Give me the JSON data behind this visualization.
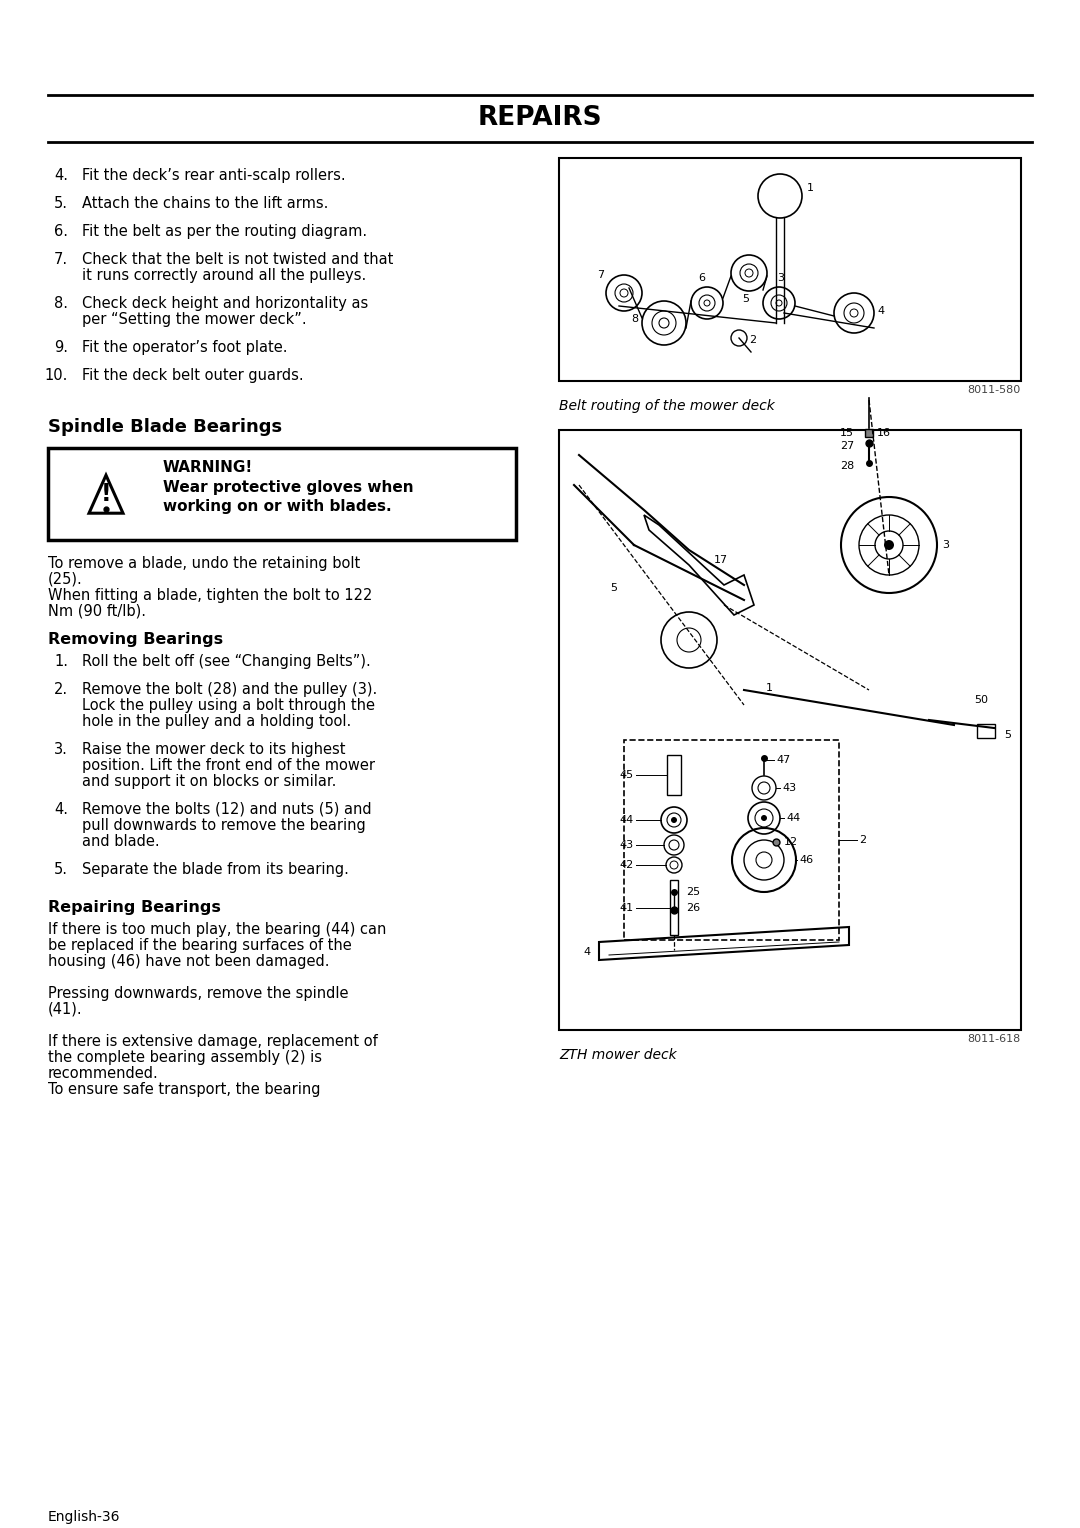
{
  "title": "REPAIRS",
  "bg_color": "#ffffff",
  "text_color": "#000000",
  "page_width": 10.8,
  "page_height": 15.28,
  "numbered_items_top": [
    {
      "num": "4.",
      "text": "Fit the deck’s rear anti-scalp rollers."
    },
    {
      "num": "5.",
      "text": "Attach the chains to the lift arms."
    },
    {
      "num": "6.",
      "text": "Fit the belt as per the routing diagram."
    },
    {
      "num": "7.",
      "text": "Check that the belt is not twisted and that\nit runs correctly around all the pulleys."
    },
    {
      "num": "8.",
      "text": "Check deck height and horizontality as\nper “Setting the mower deck”."
    },
    {
      "num": "9.",
      "text": "Fit the operator’s foot plate."
    },
    {
      "num": "10.",
      "text": "Fit the deck belt outer guards."
    }
  ],
  "section2_title": "Spindle Blade Bearings",
  "warning_title": "WARNING!",
  "warning_text": "Wear protective gloves when\nworking on or with blades.",
  "blade_intro": "To remove a blade, undo the retaining bolt\n(25).\nWhen fitting a blade, tighten the bolt to 122\nNm (90 ft/lb).",
  "removing_title": "Removing Bearings",
  "removing_items": [
    {
      "num": "1.",
      "text": "Roll the belt off (see “Changing Belts”)."
    },
    {
      "num": "2.",
      "text": "Remove the bolt (28) and the pulley (3).\nLock the pulley using a bolt through the\nhole in the pulley and a holding tool."
    },
    {
      "num": "3.",
      "text": "Raise the mower deck to its highest\nposition. Lift the front end of the mower\nand support it on blocks or similar."
    },
    {
      "num": "4.",
      "text": "Remove the bolts (12) and nuts (5) and\npull downwards to remove the bearing\nand blade."
    },
    {
      "num": "5.",
      "text": "Separate the blade from its bearing."
    }
  ],
  "repairing_title": "Repairing Bearings",
  "repairing_text": "If there is too much play, the bearing (44) can\nbe replaced if the bearing surfaces of the\nhousing (46) have not been damaged.\n\nPressing downwards, remove the spindle\n(41).\n\nIf there is extensive damage, replacement of\nthe complete bearing assembly (2) is\nrecommended.\nTo ensure safe transport, the bearing",
  "caption1": "Belt routing of the mower deck",
  "caption2": "ZTH mower deck",
  "fig_code1": "8011-580",
  "fig_code2": "8011-618",
  "footer_text": "English-36"
}
